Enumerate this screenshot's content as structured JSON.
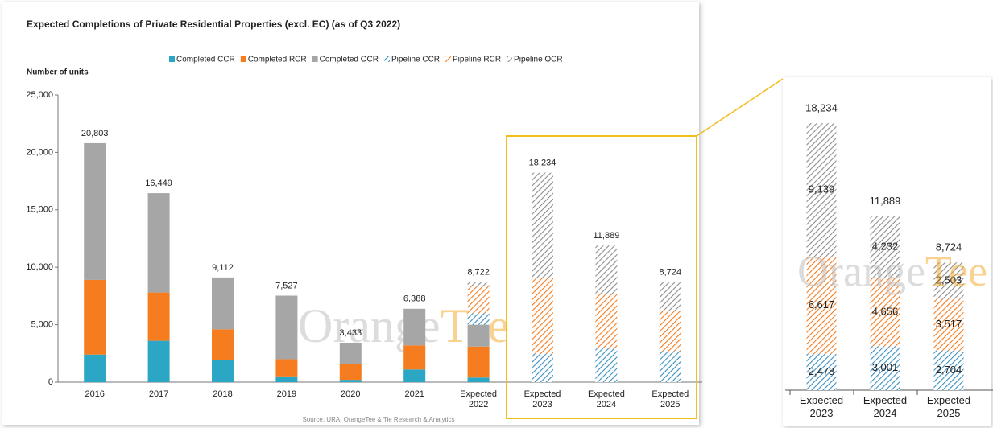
{
  "chart_data": {
    "type": "bar",
    "stacked": true,
    "title": "Expected Completions of Private Residential Properties (excl. EC) (as of Q3 2022)",
    "ylabel": "Number of units",
    "source": "Source: URA, OrangeTee & Tie Research & Analytics",
    "watermark": [
      "Orange",
      "Tee"
    ],
    "categories": [
      "2016",
      "2017",
      "2018",
      "2019",
      "2020",
      "2021",
      "Expected 2022",
      "Expected 2023",
      "Expected 2024",
      "Expected 2025"
    ],
    "ylim": [
      0,
      25000
    ],
    "yticks": [
      0,
      {
        "value": 5000,
        "label": "5,000"
      },
      {
        "value": 10000,
        "label": "10,000"
      },
      {
        "value": 15000,
        "label": "15,000"
      },
      {
        "value": 20000,
        "label": "20,000"
      },
      {
        "value": 25000,
        "label": "25,000"
      }
    ],
    "totals": [
      {
        "value": 20803,
        "label": "20,803"
      },
      {
        "value": 16449,
        "label": "16,449"
      },
      {
        "value": 9112,
        "label": "9,112"
      },
      {
        "value": 7527,
        "label": "7,527"
      },
      {
        "value": 3433,
        "label": "3,433"
      },
      {
        "value": 6388,
        "label": "6,388"
      },
      {
        "value": 8722,
        "label": "8,722"
      },
      {
        "value": 18234,
        "label": "18,234"
      },
      {
        "value": 11889,
        "label": "11,889"
      },
      {
        "value": 8724,
        "label": "8,724"
      }
    ],
    "series": [
      {
        "name": "Completed CCR",
        "color": "#2ba6c4",
        "hatched": false,
        "values": [
          2400,
          3600,
          1900,
          500,
          200,
          1100,
          400,
          null,
          null,
          null
        ]
      },
      {
        "name": "Completed RCR",
        "color": "#f57c1f",
        "hatched": false,
        "values": [
          6500,
          4200,
          2700,
          1500,
          1400,
          2100,
          2700,
          null,
          null,
          null
        ]
      },
      {
        "name": "Completed OCR",
        "color": "#a6a6a6",
        "hatched": false,
        "values": [
          11903,
          8649,
          4512,
          5527,
          1833,
          3188,
          1900,
          null,
          null,
          null
        ]
      },
      {
        "name": "Pipeline CCR",
        "color": "#3a8fc0",
        "hatched": true,
        "values": [
          null,
          null,
          null,
          null,
          null,
          null,
          1000,
          2478,
          3001,
          2704
        ],
        "value_labels": [
          null,
          null,
          null,
          null,
          null,
          null,
          null,
          "2,478",
          "3,001",
          "2,704"
        ]
      },
      {
        "name": "Pipeline RCR",
        "color": "#f57c1f",
        "hatched": true,
        "values": [
          null,
          null,
          null,
          null,
          null,
          null,
          2300,
          6617,
          4656,
          3517
        ],
        "value_labels": [
          null,
          null,
          null,
          null,
          null,
          null,
          null,
          "6,617",
          "4,656",
          "3,517"
        ]
      },
      {
        "name": "Pipeline OCR",
        "color": "#8c8c8c",
        "hatched": true,
        "values": [
          null,
          null,
          null,
          null,
          null,
          null,
          422,
          9139,
          4232,
          2503
        ],
        "value_labels": [
          null,
          null,
          null,
          null,
          null,
          null,
          null,
          "9,139",
          "4,232",
          "2,503"
        ]
      }
    ]
  }
}
